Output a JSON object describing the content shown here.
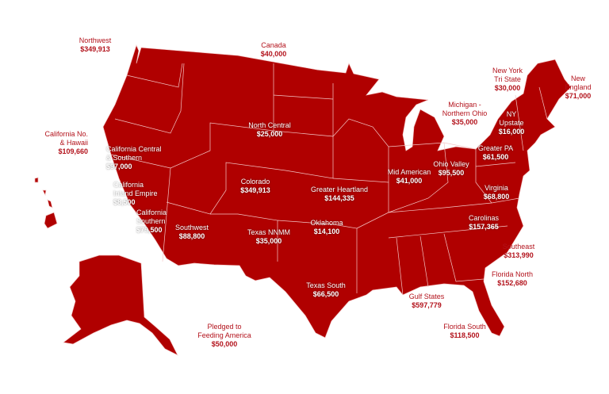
{
  "map_color": "#b00000",
  "outside_label_color": "#b3131c",
  "inside_label_color": "#ffffff",
  "regions": {
    "northwest": {
      "name": "Northwest",
      "amount": "$349,913"
    },
    "canada": {
      "name": "Canada",
      "amount": "$40,000"
    },
    "north_central": {
      "name": "North Central",
      "amount": "$25,000"
    },
    "california_no_hawaii": {
      "name1": "California No.",
      "name2": "& Hawaii",
      "amount": "$109,660"
    },
    "california_central_southern": {
      "name1": "California Central",
      "name2": "& Southern",
      "amount": "$97,000"
    },
    "california_inland_empire": {
      "name1": "California",
      "name2": "Inland Empire",
      "amount": "$8,500"
    },
    "california_southern": {
      "name1": "California",
      "name2": "Southern",
      "amount": "$79,500"
    },
    "southwest": {
      "name": "Southwest",
      "amount": "$88,800"
    },
    "colorado": {
      "name": "Colorado",
      "amount": "$349,913"
    },
    "greater_heartland": {
      "name": "Greater Heartland",
      "amount": "$144,335"
    },
    "texas_nnmm": {
      "name": "Texas NNMM",
      "amount": "$35,000"
    },
    "oklahoma": {
      "name": "Oklahoma",
      "amount": "$14,100"
    },
    "texas_south": {
      "name": "Texas South",
      "amount": "$66,500"
    },
    "feeding_america": {
      "name1": "Pledged to",
      "name2": "Feeding America",
      "amount": "$50,000"
    },
    "gulf_states": {
      "name": "Gulf States",
      "amount": "$597,779"
    },
    "florida_south": {
      "name": "Florida South",
      "amount": "$118,500"
    },
    "florida_north": {
      "name": "Florida North",
      "amount": "$152,680"
    },
    "southeast": {
      "name": "Southeast",
      "amount": "$313,990"
    },
    "carolinas": {
      "name": "Carolinas",
      "amount": "$157,365"
    },
    "virginia": {
      "name": "Virginia",
      "amount": "$68,800"
    },
    "mid_american": {
      "name": "Mid American",
      "amount": "$41,000"
    },
    "ohio_valley": {
      "name": "Ohio Valley",
      "amount": "$95,500"
    },
    "greater_pa": {
      "name": "Greater PA",
      "amount": "$61,500"
    },
    "ny_upstate": {
      "name1": "NY",
      "name2": "Upstate",
      "amount": "$16,000"
    },
    "michigan_northern_ohio": {
      "name1": "Michigan -",
      "name2": "Northern Ohio",
      "amount": "$35,000"
    },
    "new_york_tri_state": {
      "name1": "New York",
      "name2": "Tri State",
      "amount": "$30,000"
    },
    "new_england": {
      "name1": "New",
      "name2": "England",
      "amount": "$71,000"
    }
  }
}
